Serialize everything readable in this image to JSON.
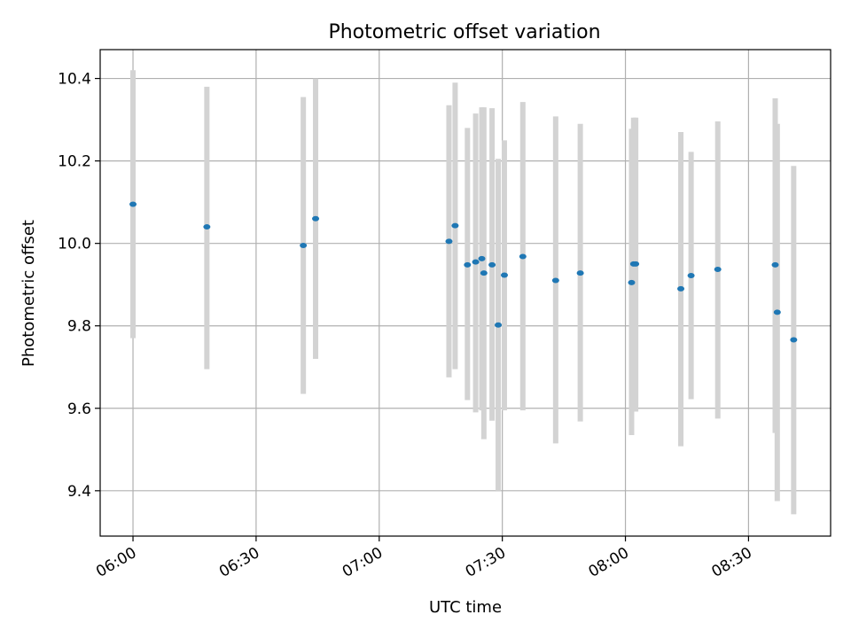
{
  "chart_data": {
    "type": "scatter",
    "title": "Photometric offset variation",
    "xlabel": "UTC time",
    "ylabel": "Photometric offset",
    "x_is_time": true,
    "xlim": [
      "05:52",
      "08:50"
    ],
    "ylim": [
      9.29,
      10.47
    ],
    "xticks": [
      "06:00",
      "06:30",
      "07:00",
      "07:30",
      "08:00",
      "08:30"
    ],
    "yticks": [
      9.4,
      9.6,
      9.8,
      10.0,
      10.2,
      10.4
    ],
    "ytick_labels": [
      "9.4",
      "9.6",
      "9.8",
      "10.0",
      "10.2",
      "10.4"
    ],
    "grid": true,
    "colors": {
      "point": "#1f77b4",
      "errorbar": "#d3d3d3",
      "grid": "#b0b0b0",
      "axes": "#000000"
    },
    "points": [
      {
        "x": "06:00",
        "y": 10.095,
        "err_low": 9.77,
        "err_high": 10.42
      },
      {
        "x": "06:18",
        "y": 10.04,
        "err_low": 9.695,
        "err_high": 10.38
      },
      {
        "x": "06:41.5",
        "y": 9.995,
        "err_low": 9.635,
        "err_high": 10.355
      },
      {
        "x": "06:44.5",
        "y": 10.06,
        "err_low": 9.72,
        "err_high": 10.4
      },
      {
        "x": "07:17",
        "y": 10.005,
        "err_low": 9.675,
        "err_high": 10.335
      },
      {
        "x": "07:18.5",
        "y": 10.043,
        "err_low": 9.695,
        "err_high": 10.39
      },
      {
        "x": "07:21.5",
        "y": 9.948,
        "err_low": 9.62,
        "err_high": 10.28
      },
      {
        "x": "07:23.5",
        "y": 9.955,
        "err_low": 9.59,
        "err_high": 10.315
      },
      {
        "x": "07:25",
        "y": 9.963,
        "err_low": 9.595,
        "err_high": 10.33
      },
      {
        "x": "07:25.5",
        "y": 9.928,
        "err_low": 9.525,
        "err_high": 10.33
      },
      {
        "x": "07:27.5",
        "y": 9.948,
        "err_low": 9.57,
        "err_high": 10.328
      },
      {
        "x": "07:29",
        "y": 9.802,
        "err_low": 9.4,
        "err_high": 10.205
      },
      {
        "x": "07:30.5",
        "y": 9.923,
        "err_low": 9.595,
        "err_high": 10.25
      },
      {
        "x": "07:35",
        "y": 9.968,
        "err_low": 9.595,
        "err_high": 10.343
      },
      {
        "x": "07:43",
        "y": 9.91,
        "err_low": 9.515,
        "err_high": 10.308
      },
      {
        "x": "07:49",
        "y": 9.928,
        "err_low": 9.568,
        "err_high": 10.29
      },
      {
        "x": "08:01.5",
        "y": 9.905,
        "err_low": 9.535,
        "err_high": 10.278
      },
      {
        "x": "08:02",
        "y": 9.95,
        "err_low": 9.595,
        "err_high": 10.305
      },
      {
        "x": "08:02.5",
        "y": 9.95,
        "err_low": 9.592,
        "err_high": 10.305
      },
      {
        "x": "08:13.5",
        "y": 9.89,
        "err_low": 9.508,
        "err_high": 10.27
      },
      {
        "x": "08:16",
        "y": 9.922,
        "err_low": 9.622,
        "err_high": 10.222
      },
      {
        "x": "08:22.5",
        "y": 9.937,
        "err_low": 9.575,
        "err_high": 10.296
      },
      {
        "x": "08:36.5",
        "y": 9.948,
        "err_low": 9.54,
        "err_high": 10.352
      },
      {
        "x": "08:37",
        "y": 9.833,
        "err_low": 9.375,
        "err_high": 10.29
      },
      {
        "x": "08:41",
        "y": 9.766,
        "err_low": 9.343,
        "err_high": 10.188
      }
    ]
  }
}
